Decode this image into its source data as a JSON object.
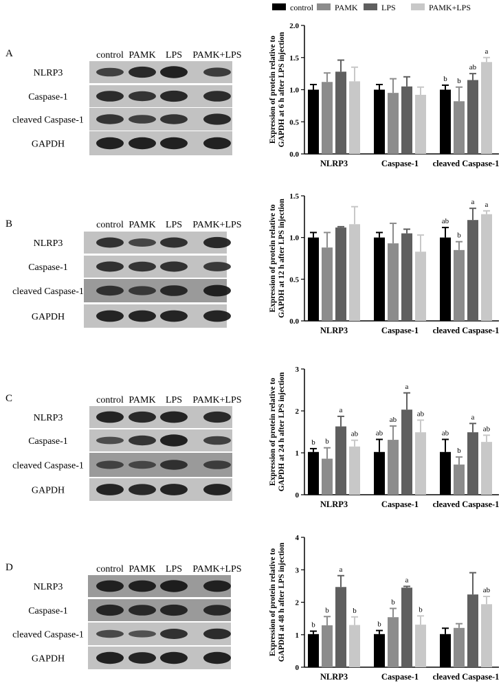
{
  "legend": [
    {
      "label": "control",
      "color": "#000000"
    },
    {
      "label": "PAMK",
      "color": "#8c8c8c"
    },
    {
      "label": "LPS",
      "color": "#5f5f5f"
    },
    {
      "label": "PAMK+LPS",
      "color": "#c8c8c8"
    }
  ],
  "blots": {
    "lane_labels": [
      "control",
      "PAMK",
      "LPS",
      "PAMK+LPS"
    ],
    "row_labels": [
      "NLRP3",
      "Caspase-1",
      "cleaved Caspase-1",
      "GAPDH"
    ]
  },
  "panels": [
    {
      "letter": "A",
      "chart_data": {
        "type": "bar",
        "categories": [
          "NLRP3",
          "Caspase-1",
          "cleaved Caspase-1"
        ],
        "series_names": [
          "control",
          "PAMK",
          "LPS",
          "PAMK+LPS"
        ],
        "values": [
          [
            1.0,
            1.12,
            1.28,
            1.13
          ],
          [
            1.0,
            0.95,
            1.05,
            0.92
          ],
          [
            1.0,
            0.82,
            1.15,
            1.43
          ]
        ],
        "errors": [
          [
            0.08,
            0.14,
            0.18,
            0.22
          ],
          [
            0.08,
            0.22,
            0.15,
            0.12
          ],
          [
            0.07,
            0.22,
            0.1,
            0.07
          ]
        ],
        "letters": [
          [
            "",
            "",
            "",
            ""
          ],
          [
            "",
            "",
            "",
            ""
          ],
          [
            "b",
            "b",
            "ab",
            "a"
          ]
        ],
        "ylim": [
          0,
          2.0
        ],
        "yticks": [
          "0.0",
          "0.5",
          "1.0",
          "1.5",
          "2.0"
        ],
        "ylabel": [
          "Expression of protein relative to",
          "GAPDH at 6 h after LPS injection"
        ]
      }
    },
    {
      "letter": "B",
      "chart_data": {
        "type": "bar",
        "categories": [
          "NLRP3",
          "Caspase-1",
          "cleaved Caspase-1"
        ],
        "series_names": [
          "control",
          "PAMK",
          "LPS",
          "PAMK+LPS"
        ],
        "values": [
          [
            1.0,
            0.88,
            1.12,
            1.16
          ],
          [
            1.0,
            0.93,
            1.05,
            0.83
          ],
          [
            1.0,
            0.85,
            1.21,
            1.28
          ]
        ],
        "errors": [
          [
            0.06,
            0.18,
            0.01,
            0.21
          ],
          [
            0.06,
            0.24,
            0.05,
            0.2
          ],
          [
            0.12,
            0.1,
            0.14,
            0.04
          ]
        ],
        "letters": [
          [
            "",
            "",
            "",
            ""
          ],
          [
            "",
            "",
            "",
            ""
          ],
          [
            "ab",
            "b",
            "a",
            "a"
          ]
        ],
        "ylim": [
          0,
          1.5
        ],
        "yticks": [
          "0.0",
          "0.5",
          "1.0",
          "1.5"
        ],
        "ylabel": [
          "Expression of protein relative to",
          "GAPDH at 12 h after LPS injection"
        ]
      }
    },
    {
      "letter": "C",
      "chart_data": {
        "type": "bar",
        "categories": [
          "NLRP3",
          "Caspase-1",
          "cleaved Caspase-1"
        ],
        "series_names": [
          "control",
          "PAMK",
          "LPS",
          "PAMK+LPS"
        ],
        "values": [
          [
            1.02,
            0.86,
            1.63,
            1.15
          ],
          [
            1.02,
            1.31,
            2.03,
            1.49
          ],
          [
            1.02,
            0.72,
            1.49,
            1.26
          ]
        ],
        "errors": [
          [
            0.08,
            0.26,
            0.24,
            0.15
          ],
          [
            0.3,
            0.33,
            0.4,
            0.29
          ],
          [
            0.3,
            0.18,
            0.21,
            0.16
          ]
        ],
        "letters": [
          [
            "b",
            "b",
            "a",
            "ab"
          ],
          [
            "ab",
            "ab",
            "a",
            "ab"
          ],
          [
            "ab",
            "b",
            "a",
            "ab"
          ]
        ],
        "ylim": [
          0,
          3
        ],
        "yticks": [
          "0",
          "1",
          "2",
          "3"
        ],
        "ylabel": [
          "Expression of protein relative to",
          "GAPDH at 24 h after LPS injection"
        ]
      }
    },
    {
      "letter": "D",
      "chart_data": {
        "type": "bar",
        "categories": [
          "NLRP3",
          "Caspase-1",
          "cleaved Caspase-1"
        ],
        "series_names": [
          "control",
          "PAMK",
          "LPS",
          "PAMK+LPS"
        ],
        "values": [
          [
            1.02,
            1.29,
            2.47,
            1.3
          ],
          [
            1.02,
            1.54,
            2.45,
            1.31
          ],
          [
            1.02,
            1.21,
            2.24,
            1.94
          ]
        ],
        "errors": [
          [
            0.09,
            0.27,
            0.35,
            0.25
          ],
          [
            0.11,
            0.27,
            0.04,
            0.27
          ],
          [
            0.18,
            0.13,
            0.67,
            0.24
          ]
        ],
        "letters": [
          [
            "b",
            "b",
            "a",
            "b"
          ],
          [
            "b",
            "b",
            "a",
            "b"
          ],
          [
            "",
            "",
            "",
            "ab"
          ]
        ],
        "ylim": [
          0,
          4
        ],
        "yticks": [
          "0",
          "1",
          "2",
          "3",
          "4"
        ],
        "ylabel": [
          "Expression of protein relative to",
          "GAPDH at 48 h after LPS injection"
        ]
      }
    }
  ]
}
